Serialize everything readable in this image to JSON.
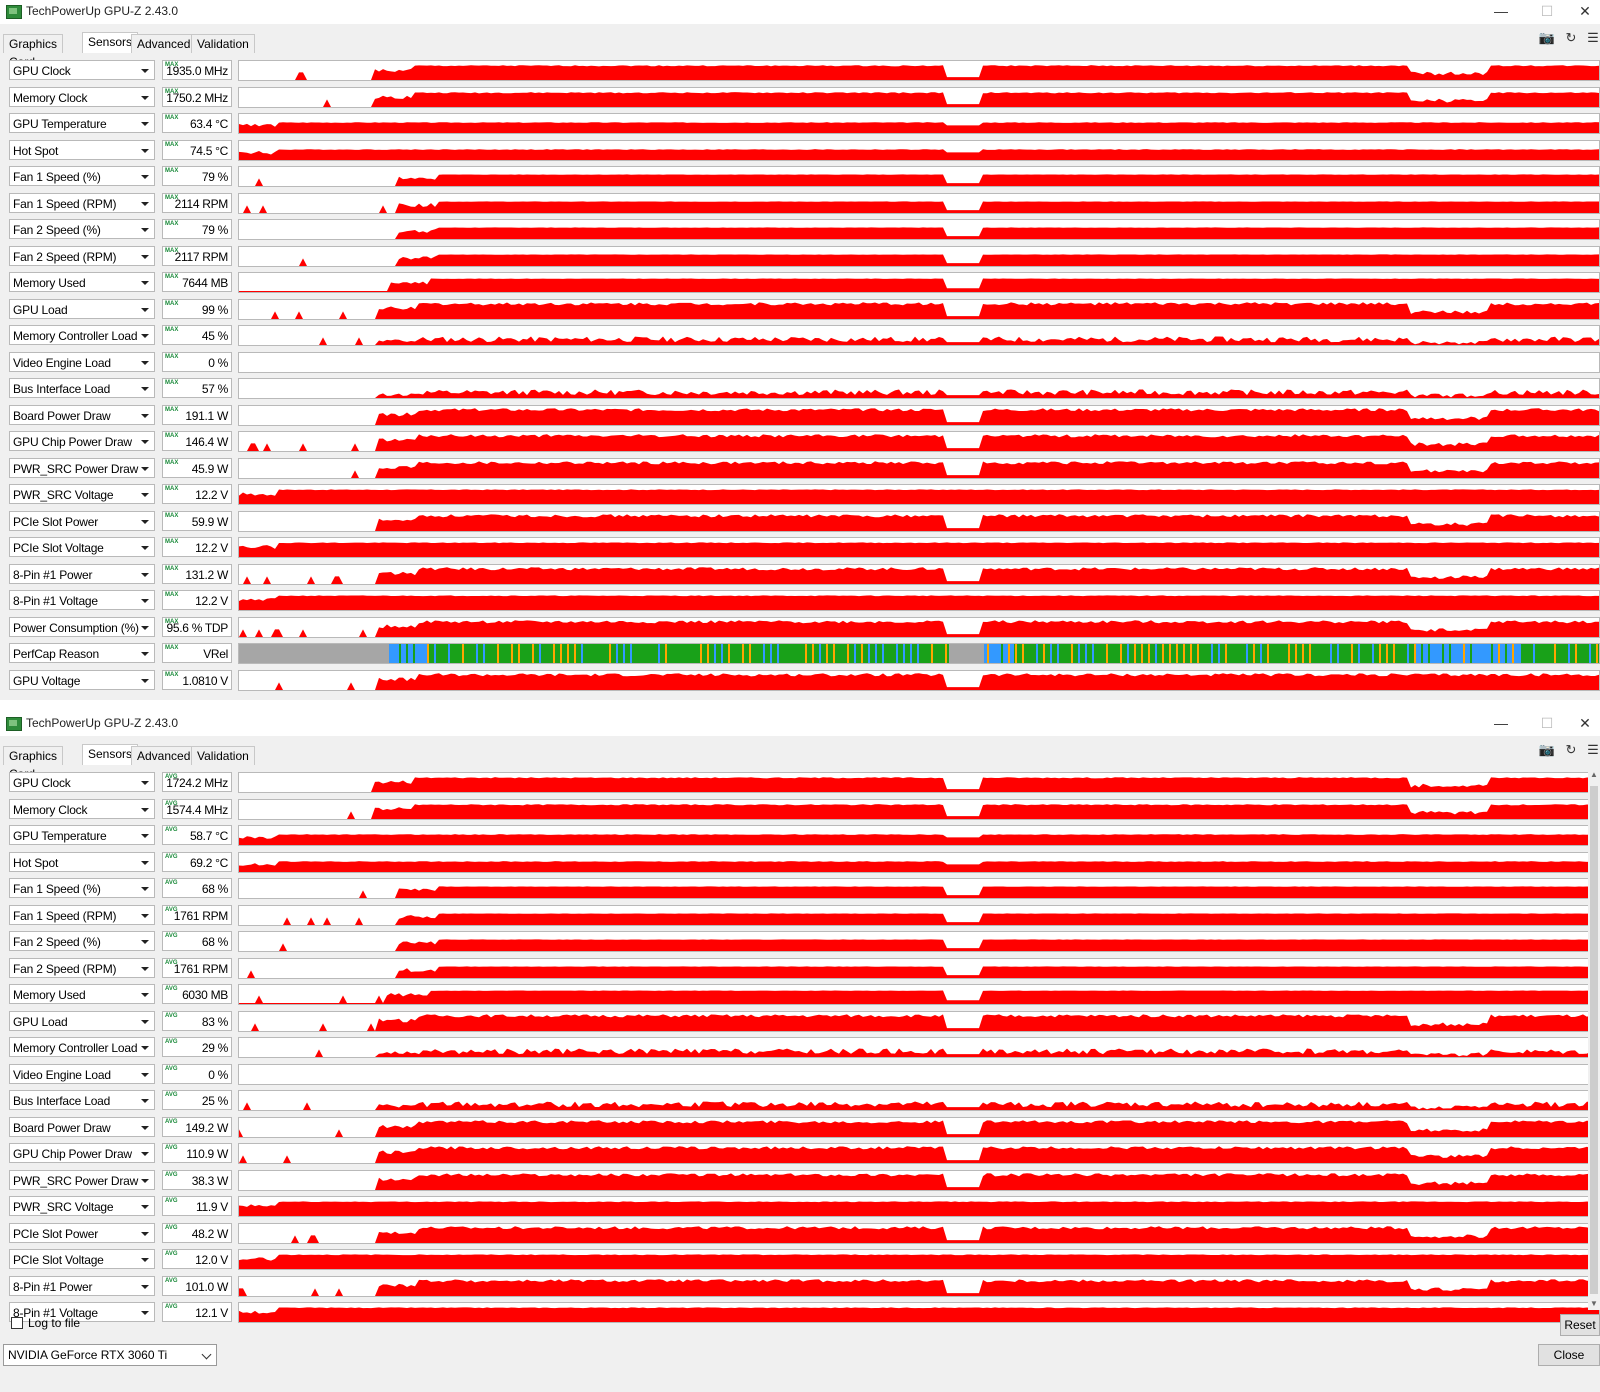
{
  "windows": [
    {
      "title": "TechPowerUp GPU-Z 2.43.0",
      "tabs": [
        "Graphics Card",
        "Sensors",
        "Advanced",
        "Validation"
      ],
      "active_tab": "Sensors",
      "mode_tag": "MAX",
      "sensors": [
        {
          "label": "GPU Clock",
          "value": "1935.0 MHz"
        },
        {
          "label": "Memory Clock",
          "value": "1750.2 MHz"
        },
        {
          "label": "GPU Temperature",
          "value": "63.4 °C"
        },
        {
          "label": "Hot Spot",
          "value": "74.5 °C"
        },
        {
          "label": "Fan 1 Speed (%)",
          "value": "79 %"
        },
        {
          "label": "Fan 1 Speed (RPM)",
          "value": "2114 RPM"
        },
        {
          "label": "Fan 2 Speed (%)",
          "value": "79 %"
        },
        {
          "label": "Fan 2 Speed (RPM)",
          "value": "2117 RPM"
        },
        {
          "label": "Memory Used",
          "value": "7644 MB"
        },
        {
          "label": "GPU Load",
          "value": "99 %"
        },
        {
          "label": "Memory Controller Load",
          "value": "45 %"
        },
        {
          "label": "Video Engine Load",
          "value": "0 %"
        },
        {
          "label": "Bus Interface Load",
          "value": "57 %"
        },
        {
          "label": "Board Power Draw",
          "value": "191.1 W"
        },
        {
          "label": "GPU Chip Power Draw",
          "value": "146.4 W"
        },
        {
          "label": "PWR_SRC Power Draw",
          "value": "45.9 W"
        },
        {
          "label": "PWR_SRC Voltage",
          "value": "12.2 V"
        },
        {
          "label": "PCIe Slot Power",
          "value": "59.9 W"
        },
        {
          "label": "PCIe Slot Voltage",
          "value": "12.2 V"
        },
        {
          "label": "8-Pin #1 Power",
          "value": "131.2 W"
        },
        {
          "label": "8-Pin #1 Voltage",
          "value": "12.2 V"
        },
        {
          "label": "Power Consumption (%)",
          "value": "95.6 % TDP"
        },
        {
          "label": "PerfCap Reason",
          "value": "VRel"
        },
        {
          "label": "GPU Voltage",
          "value": "1.0810 V"
        }
      ]
    },
    {
      "title": "TechPowerUp GPU-Z 2.43.0",
      "tabs": [
        "Graphics Card",
        "Sensors",
        "Advanced",
        "Validation"
      ],
      "active_tab": "Sensors",
      "mode_tag": "AVG",
      "sensors": [
        {
          "label": "GPU Clock",
          "value": "1724.2 MHz"
        },
        {
          "label": "Memory Clock",
          "value": "1574.4 MHz"
        },
        {
          "label": "GPU Temperature",
          "value": "58.7 °C"
        },
        {
          "label": "Hot Spot",
          "value": "69.2 °C"
        },
        {
          "label": "Fan 1 Speed (%)",
          "value": "68 %"
        },
        {
          "label": "Fan 1 Speed (RPM)",
          "value": "1761 RPM"
        },
        {
          "label": "Fan 2 Speed (%)",
          "value": "68 %"
        },
        {
          "label": "Fan 2 Speed (RPM)",
          "value": "1761 RPM"
        },
        {
          "label": "Memory Used",
          "value": "6030 MB"
        },
        {
          "label": "GPU Load",
          "value": "83 %"
        },
        {
          "label": "Memory Controller Load",
          "value": "29 %"
        },
        {
          "label": "Video Engine Load",
          "value": "0 %"
        },
        {
          "label": "Bus Interface Load",
          "value": "25 %"
        },
        {
          "label": "Board Power Draw",
          "value": "149.2 W"
        },
        {
          "label": "GPU Chip Power Draw",
          "value": "110.9 W"
        },
        {
          "label": "PWR_SRC Power Draw",
          "value": "38.3 W"
        },
        {
          "label": "PWR_SRC Voltage",
          "value": "11.9 V"
        },
        {
          "label": "PCIe Slot Power",
          "value": "48.2 W"
        },
        {
          "label": "PCIe Slot Voltage",
          "value": "12.0 V"
        },
        {
          "label": "8-Pin #1 Power",
          "value": "101.0 W"
        },
        {
          "label": "8-Pin #1 Voltage",
          "value": "12.1 V"
        }
      ],
      "log_to_file_label": "Log to file",
      "log_to_file_checked": false,
      "reset_label": "Reset",
      "close_label": "Close",
      "gpu_select_value": "NVIDIA GeForce RTX 3060 Ti"
    }
  ],
  "colors": {
    "graph_fill": "#ff0000",
    "perfcap_gray": "#a6a6a6",
    "perfcap_blue": "#3399ff",
    "perfcap_green": "#19a119",
    "perfcap_orange": "#ffa500"
  },
  "icons": [
    "app-gpu-icon",
    "minimize-icon",
    "maximize-icon",
    "close-icon",
    "camera-icon",
    "refresh-icon",
    "menu-icon",
    "dropdown-arrow-icon"
  ]
}
